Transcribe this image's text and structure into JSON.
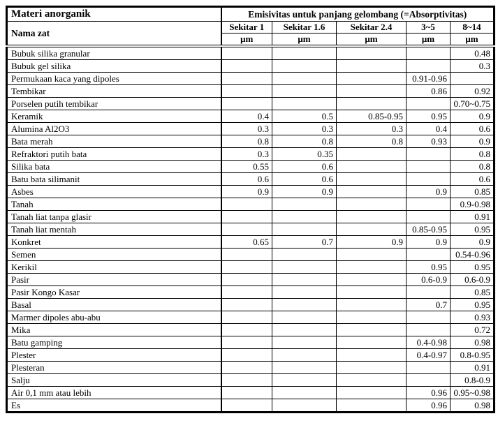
{
  "table": {
    "corner_title": "Materi anorganik",
    "span_title": "Emisivitas untuk panjang gelombang (=Absorptivitas)",
    "name_header": "Nama zat",
    "columns": [
      {
        "label": "Sekitar 1",
        "unit": "μm"
      },
      {
        "label": "Sekitar 1.6",
        "unit": "μm"
      },
      {
        "label": "Sekitar 2.4",
        "unit": "μm"
      },
      {
        "label": "3~5",
        "unit": "μm"
      },
      {
        "label": "8~14",
        "unit": "μm"
      }
    ],
    "rows": [
      {
        "name": "Bubuk silika granular",
        "values": [
          "",
          "",
          "",
          "",
          "0.48"
        ]
      },
      {
        "name": "Bubuk gel silika",
        "values": [
          "",
          "",
          "",
          "",
          "0.3"
        ]
      },
      {
        "name": "Permukaan kaca yang dipoles",
        "values": [
          "",
          "",
          "",
          "0.91-0.96",
          ""
        ]
      },
      {
        "name": "Tembikar",
        "values": [
          "",
          "",
          "",
          "0.86",
          "0.92"
        ]
      },
      {
        "name": "Porselen putih tembikar",
        "values": [
          "",
          "",
          "",
          "",
          "0.70~0.75"
        ]
      },
      {
        "name": "Keramik",
        "values": [
          "0.4",
          "0.5",
          "0.85-0.95",
          "0.95",
          "0.9"
        ]
      },
      {
        "name": "Alumina Al2O3",
        "values": [
          "0.3",
          "0.3",
          "0.3",
          "0.4",
          "0.6"
        ]
      },
      {
        "name": "Bata merah",
        "values": [
          "0.8",
          "0.8",
          "0.8",
          "0.93",
          "0.9"
        ]
      },
      {
        "name": "Refraktori putih bata",
        "values": [
          "0.3",
          "0.35",
          "",
          "",
          "0.8"
        ]
      },
      {
        "name": "Silika bata",
        "values": [
          "0.55",
          "0.6",
          "",
          "",
          "0.8"
        ]
      },
      {
        "name": "Batu bata silimanit",
        "values": [
          "0.6",
          "0.6",
          "",
          "",
          "0.6"
        ]
      },
      {
        "name": "Asbes",
        "values": [
          "0.9",
          "0.9",
          "",
          "0.9",
          "0.85"
        ]
      },
      {
        "name": "Tanah",
        "values": [
          "",
          "",
          "",
          "",
          "0.9-0.98"
        ]
      },
      {
        "name": "Tanah liat tanpa glasir",
        "values": [
          "",
          "",
          "",
          "",
          "0.91"
        ]
      },
      {
        "name": "Tanah liat mentah",
        "values": [
          "",
          "",
          "",
          "0.85-0.95",
          "0.95"
        ]
      },
      {
        "name": "Konkret",
        "values": [
          "0.65",
          "0.7",
          "0.9",
          "0.9",
          "0.9"
        ]
      },
      {
        "name": "Semen",
        "values": [
          "",
          "",
          "",
          "",
          "0.54-0.96"
        ]
      },
      {
        "name": "Kerikil",
        "values": [
          "",
          "",
          "",
          "0.95",
          "0.95"
        ]
      },
      {
        "name": "Pasir",
        "values": [
          "",
          "",
          "",
          "0.6-0.9",
          "0.6-0.9"
        ]
      },
      {
        "name": "Pasir Kongo Kasar",
        "values": [
          "",
          "",
          "",
          "",
          "0.85"
        ]
      },
      {
        "name": "Basal",
        "values": [
          "",
          "",
          "",
          "0.7",
          "0.95"
        ]
      },
      {
        "name": "Marmer dipoles abu-abu",
        "values": [
          "",
          "",
          "",
          "",
          "0.93"
        ]
      },
      {
        "name": "Mika",
        "values": [
          "",
          "",
          "",
          "",
          "0.72"
        ]
      },
      {
        "name": "Batu gamping",
        "values": [
          "",
          "",
          "",
          "0.4-0.98",
          "0.98"
        ]
      },
      {
        "name": "Plester",
        "values": [
          "",
          "",
          "",
          "0.4-0.97",
          "0.8-0.95"
        ]
      },
      {
        "name": "Plesteran",
        "values": [
          "",
          "",
          "",
          "",
          "0.91"
        ]
      },
      {
        "name": "Salju",
        "values": [
          "",
          "",
          "",
          "",
          "0.8-0.9"
        ]
      },
      {
        "name": "Air 0,1 mm atau lebih",
        "values": [
          "",
          "",
          "",
          "0.96",
          "0.95~0.98"
        ]
      },
      {
        "name": "Es",
        "values": [
          "",
          "",
          "",
          "0.96",
          "0.98"
        ]
      }
    ]
  },
  "colors": {
    "border": "#000000",
    "background": "#ffffff",
    "text": "#000000"
  }
}
